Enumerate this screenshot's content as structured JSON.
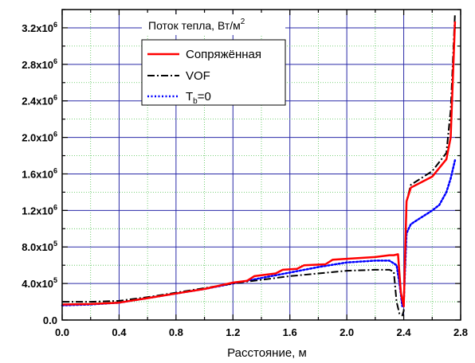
{
  "chart_data": {
    "type": "line",
    "title": "Поток тепла, Вт/м²",
    "xlabel": "Расстояние, м",
    "ylabel": "",
    "xlim": [
      0.0,
      2.8
    ],
    "ylim": [
      0,
      3400000
    ],
    "grid": true,
    "legend_position": "top-center",
    "x_ticks": [
      0.0,
      0.4,
      0.8,
      1.2,
      1.6,
      2.0,
      2.4,
      2.8
    ],
    "x_tick_labels": [
      "0.0",
      "0.4",
      "0.8",
      "1.2",
      "1.6",
      "2.0",
      "2.4",
      "2.8"
    ],
    "y_ticks": [
      0,
      400000,
      800000,
      1200000,
      1600000,
      2000000,
      2400000,
      2800000,
      3200000
    ],
    "y_tick_labels": [
      {
        "base": "0.0",
        "exp": ""
      },
      {
        "base": "4.0x10",
        "exp": "5"
      },
      {
        "base": "8.0x10",
        "exp": "5"
      },
      {
        "base": "1.2x10",
        "exp": "6"
      },
      {
        "base": "1.6x10",
        "exp": "6"
      },
      {
        "base": "2.0x10",
        "exp": "6"
      },
      {
        "base": "2.4x10",
        "exp": "6"
      },
      {
        "base": "2.8x10",
        "exp": "6"
      },
      {
        "base": "3.2x10",
        "exp": "6"
      }
    ],
    "series": [
      {
        "name": "Сопряжённая",
        "color": "#ff0000",
        "style": "solid",
        "x": [
          0.0,
          0.2,
          0.4,
          0.6,
          0.8,
          1.0,
          1.2,
          1.3,
          1.35,
          1.5,
          1.55,
          1.65,
          1.7,
          1.85,
          1.9,
          2.0,
          2.1,
          2.2,
          2.3,
          2.33,
          2.36,
          2.38,
          2.4,
          2.42,
          2.45,
          2.5,
          2.6,
          2.7,
          2.73,
          2.76
        ],
        "y": [
          170000,
          175000,
          190000,
          240000,
          290000,
          340000,
          410000,
          430000,
          480000,
          510000,
          550000,
          560000,
          600000,
          610000,
          660000,
          670000,
          680000,
          690000,
          710000,
          710000,
          720000,
          300000,
          150000,
          1300000,
          1450000,
          1490000,
          1570000,
          1760000,
          2000000,
          3270000
        ]
      },
      {
        "name": "VOF",
        "color": "#000000",
        "style": "dashdot",
        "x": [
          0.0,
          0.2,
          0.4,
          0.6,
          0.8,
          1.0,
          1.2,
          1.4,
          1.6,
          1.8,
          2.0,
          2.2,
          2.3,
          2.33,
          2.35,
          2.37,
          2.39,
          2.4,
          2.42,
          2.45,
          2.5,
          2.6,
          2.7,
          2.73,
          2.76
        ],
        "y": [
          200000,
          200000,
          210000,
          250000,
          300000,
          350000,
          400000,
          440000,
          480000,
          510000,
          540000,
          550000,
          550000,
          530000,
          200000,
          70000,
          50000,
          100000,
          1300000,
          1480000,
          1530000,
          1630000,
          1830000,
          2300000,
          3360000
        ]
      },
      {
        "name": "T_b=0",
        "color": "#0000ff",
        "style": "dotted",
        "x": [
          0.0,
          0.2,
          0.4,
          0.6,
          0.8,
          1.0,
          1.2,
          1.4,
          1.6,
          1.8,
          2.0,
          2.2,
          2.3,
          2.35,
          2.37,
          2.39,
          2.4,
          2.42,
          2.45,
          2.5,
          2.55,
          2.6,
          2.65,
          2.7,
          2.73,
          2.76
        ],
        "y": [
          160000,
          170000,
          190000,
          240000,
          290000,
          340000,
          400000,
          460000,
          520000,
          580000,
          630000,
          650000,
          650000,
          600000,
          400000,
          150000,
          200000,
          950000,
          1050000,
          1100000,
          1150000,
          1200000,
          1260000,
          1400000,
          1550000,
          1750000
        ]
      }
    ]
  },
  "legend": {
    "items": [
      {
        "label": "Сопряжённая",
        "sub": ""
      },
      {
        "label": "VOF",
        "sub": ""
      },
      {
        "label": "T",
        "sub": "b",
        "suffix": "=0"
      }
    ]
  },
  "title": {
    "text": "Поток тепла, Вт/м",
    "sup": "2"
  },
  "xlabel": "Расстояние, м"
}
